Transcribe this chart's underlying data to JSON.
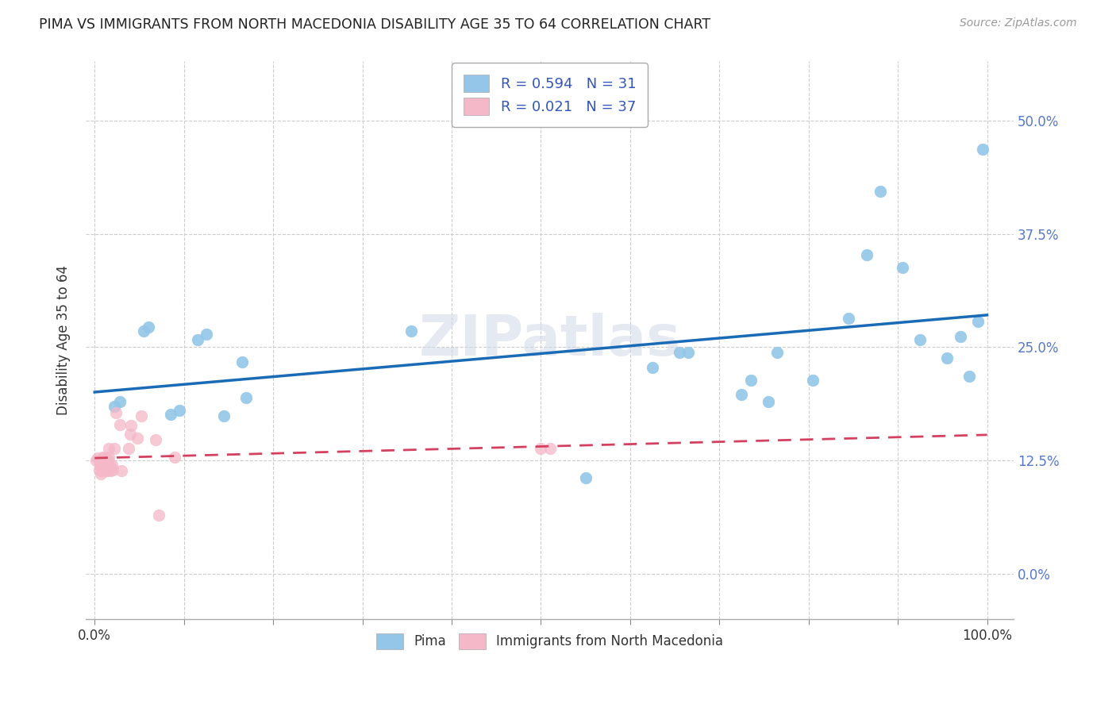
{
  "title": "PIMA VS IMMIGRANTS FROM NORTH MACEDONIA DISABILITY AGE 35 TO 64 CORRELATION CHART",
  "source": "Source: ZipAtlas.com",
  "ylabel": "Disability Age 35 to 64",
  "legend_labels": [
    "Pima",
    "Immigrants from North Macedonia"
  ],
  "r_pima": 0.594,
  "n_pima": 31,
  "r_immig": 0.021,
  "n_immig": 37,
  "pima_color": "#93c6e8",
  "immig_color": "#f4b8c8",
  "pima_line_color": "#1a6bb5",
  "immig_line_color": "#d44060",
  "background_color": "#ffffff",
  "watermark": "ZIPatlas",
  "xlim": [
    -0.01,
    1.03
  ],
  "ylim": [
    -0.05,
    0.565
  ],
  "yticks": [
    0.0,
    0.125,
    0.25,
    0.375,
    0.5
  ],
  "ytick_labels": [
    "0.0%",
    "12.5%",
    "25.0%",
    "37.5%",
    "50.0%"
  ],
  "xticks": [
    0.0,
    0.1,
    0.2,
    0.3,
    0.4,
    0.5,
    0.6,
    0.7,
    0.8,
    0.9,
    1.0
  ],
  "xtick_labels_show": [
    "0.0%",
    "100.0%"
  ],
  "pima_x": [
    0.022,
    0.028,
    0.055,
    0.06,
    0.085,
    0.095,
    0.115,
    0.125,
    0.145,
    0.165,
    0.17,
    0.355,
    0.55,
    0.625,
    0.655,
    0.665,
    0.725,
    0.735,
    0.755,
    0.765,
    0.805,
    0.845,
    0.865,
    0.88,
    0.905,
    0.925,
    0.955,
    0.97,
    0.98,
    0.99,
    0.995
  ],
  "pima_y": [
    0.185,
    0.19,
    0.268,
    0.272,
    0.176,
    0.18,
    0.258,
    0.264,
    0.174,
    0.234,
    0.194,
    0.268,
    0.106,
    0.228,
    0.244,
    0.244,
    0.198,
    0.214,
    0.19,
    0.244,
    0.214,
    0.282,
    0.352,
    0.422,
    0.338,
    0.258,
    0.238,
    0.262,
    0.218,
    0.278,
    0.468
  ],
  "immig_x": [
    0.002,
    0.003,
    0.005,
    0.006,
    0.006,
    0.007,
    0.008,
    0.008,
    0.009,
    0.01,
    0.011,
    0.011,
    0.012,
    0.013,
    0.014,
    0.015,
    0.015,
    0.016,
    0.016,
    0.017,
    0.018,
    0.019,
    0.02,
    0.022,
    0.024,
    0.028,
    0.03,
    0.038,
    0.04,
    0.041,
    0.048,
    0.052,
    0.068,
    0.072,
    0.09,
    0.5,
    0.51
  ],
  "immig_y": [
    0.125,
    0.128,
    0.115,
    0.12,
    0.124,
    0.11,
    0.114,
    0.12,
    0.128,
    0.129,
    0.114,
    0.12,
    0.115,
    0.12,
    0.114,
    0.124,
    0.126,
    0.138,
    0.129,
    0.12,
    0.114,
    0.12,
    0.115,
    0.138,
    0.178,
    0.165,
    0.114,
    0.138,
    0.154,
    0.164,
    0.15,
    0.174,
    0.148,
    0.065,
    0.129,
    0.138,
    0.138
  ],
  "immig_outlier_x": [
    0.068
  ],
  "immig_outlier_y": [
    0.065
  ],
  "immig_low_x": [
    0.09
  ],
  "immig_low_y": [
    0.07
  ]
}
